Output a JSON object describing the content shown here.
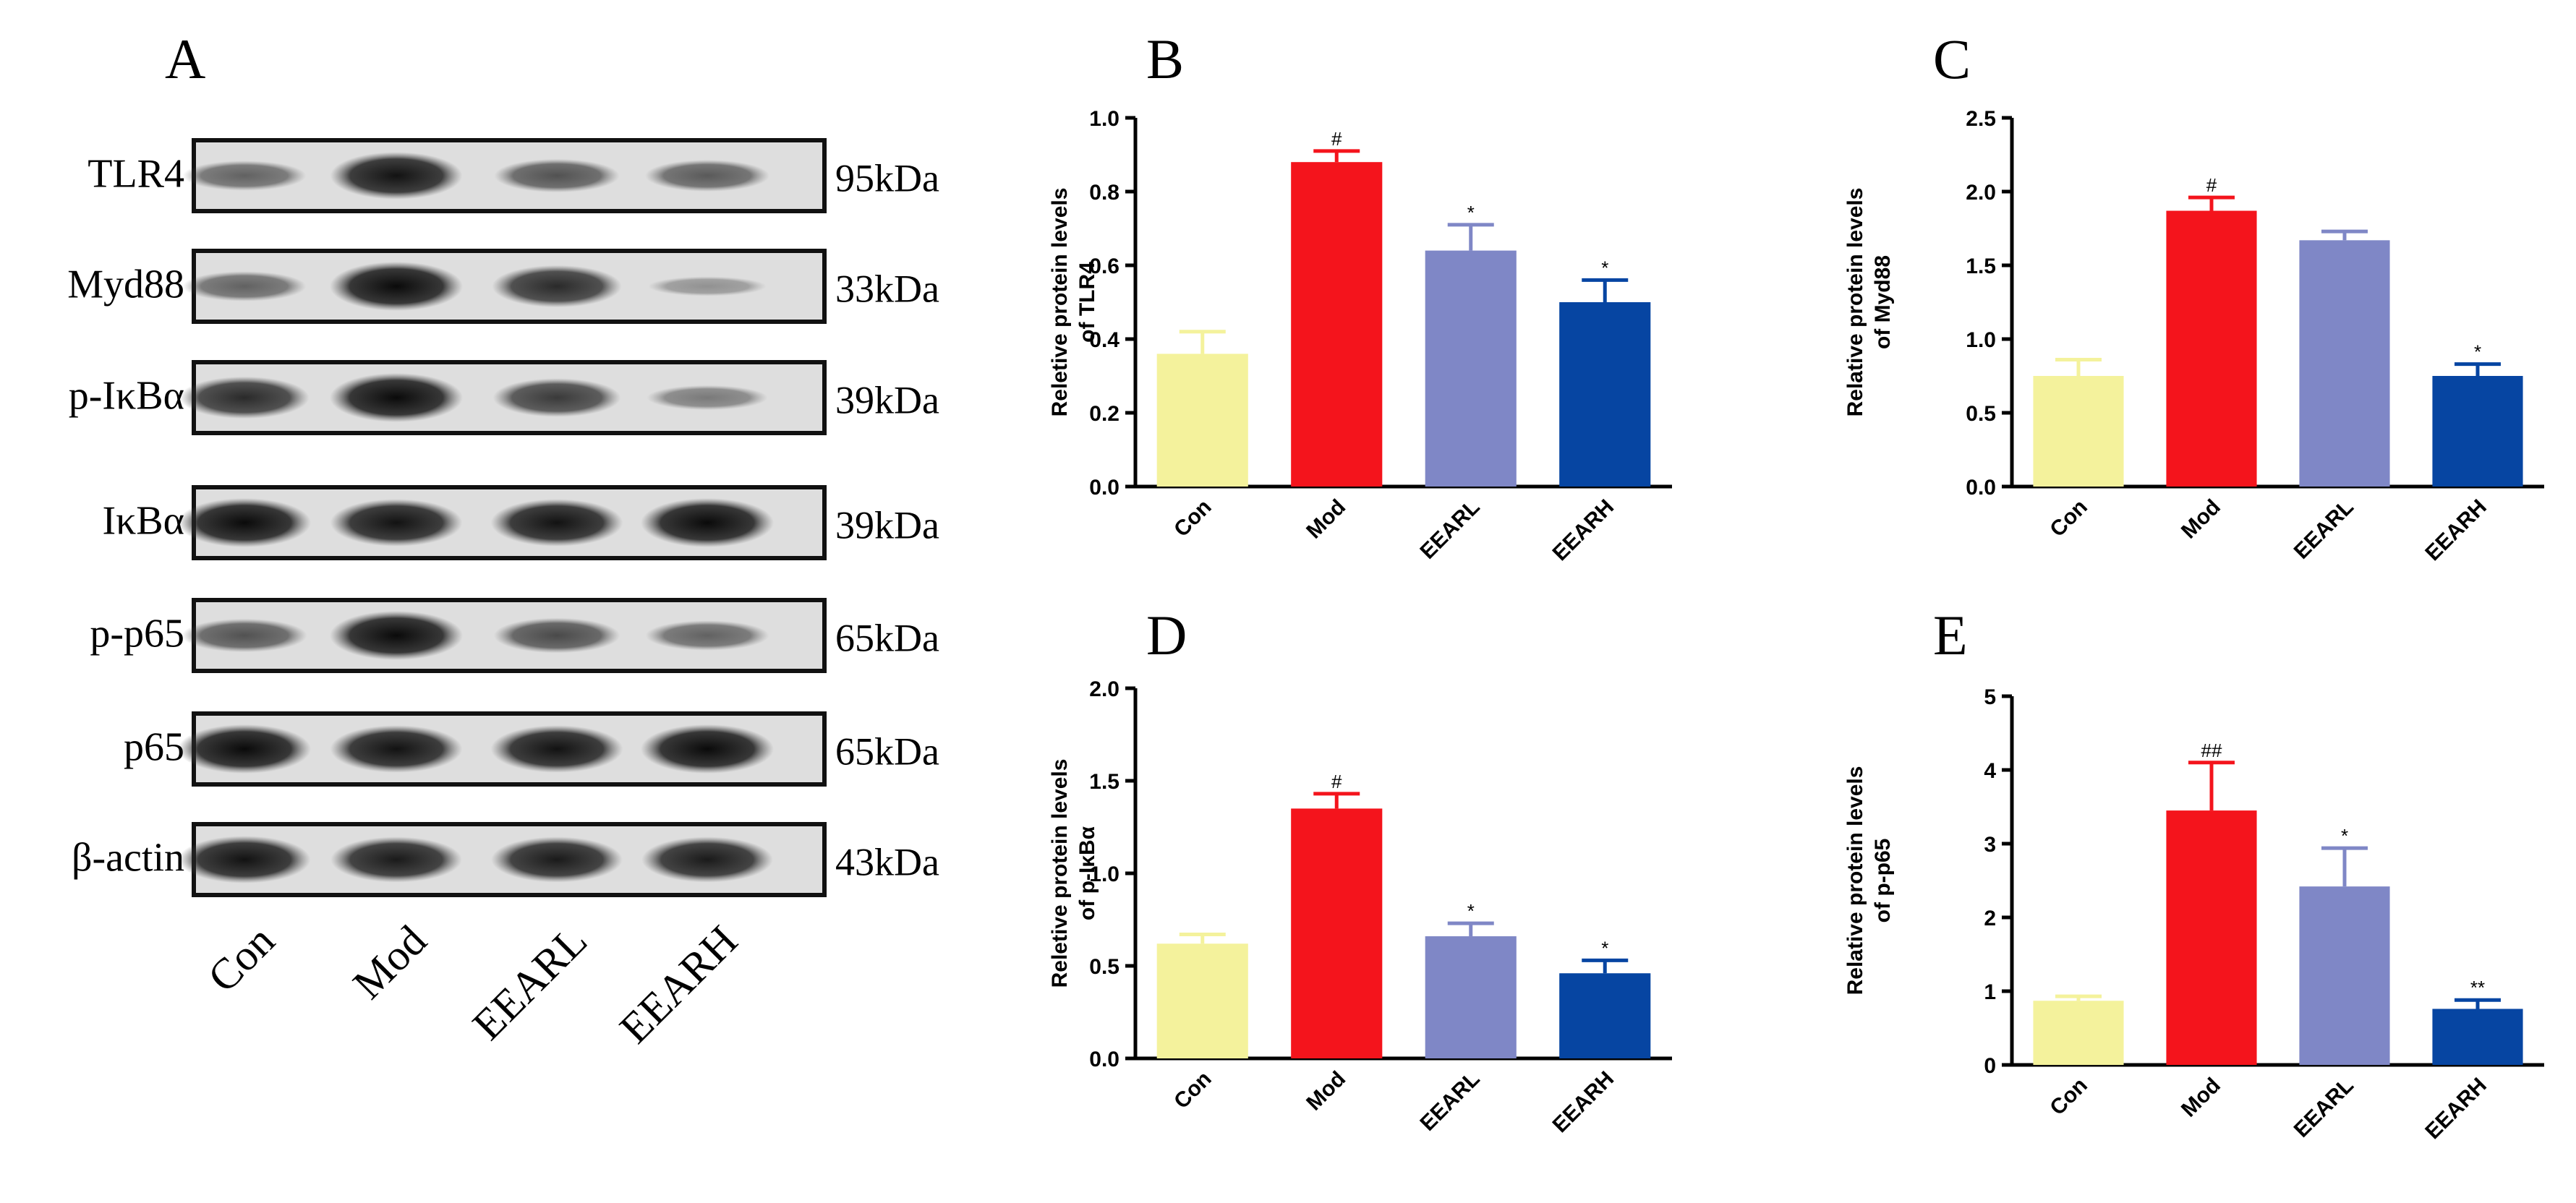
{
  "panel_a": {
    "label": "A",
    "lanes": [
      "Con",
      "Mod",
      "EEARL",
      "EEARH"
    ],
    "blots": [
      {
        "protein": "TLR4",
        "size": "95kDa",
        "bands": [
          0.45,
          0.95,
          0.55,
          0.5
        ]
      },
      {
        "protein": "Myd88",
        "size": "33kDa",
        "bands": [
          0.45,
          1.0,
          0.8,
          0.15
        ]
      },
      {
        "protein": "p-IκBα",
        "size": "39kDa",
        "bands": [
          0.8,
          1.0,
          0.7,
          0.3
        ]
      },
      {
        "protein": "IκBα",
        "size": "39kDa",
        "bands": [
          1.0,
          0.95,
          0.95,
          1.0
        ]
      },
      {
        "protein": "p-p65",
        "size": "65kDa",
        "bands": [
          0.55,
          1.0,
          0.6,
          0.45
        ]
      },
      {
        "protein": "p65",
        "size": "65kDa",
        "bands": [
          1.0,
          0.95,
          0.95,
          1.0
        ]
      },
      {
        "protein": "β-actin",
        "size": "43kDa",
        "bands": [
          0.95,
          0.9,
          0.9,
          0.9
        ]
      }
    ]
  },
  "colors": {
    "Con": "#f4f29c",
    "Mod": "#f4141c",
    "EEARL": "#7f87c6",
    "EEARH": "#0645a2",
    "axis": "#000000"
  },
  "chart_data": [
    {
      "panel": "B",
      "type": "bar",
      "categories": [
        "Con",
        "Mod",
        "EEARL",
        "EEARH"
      ],
      "values": [
        0.36,
        0.88,
        0.64,
        0.5
      ],
      "errors": [
        0.06,
        0.03,
        0.07,
        0.06
      ],
      "annotations": [
        "",
        "#",
        "*",
        "*"
      ],
      "ylabel": [
        "Reletive protein levels",
        "of TLR4"
      ],
      "ylim": [
        0,
        1.0
      ],
      "yticks": [
        0.0,
        0.2,
        0.4,
        0.6,
        0.8,
        1.0
      ],
      "yticklabels": [
        "0.0",
        "0.2",
        "0.4",
        "0.6",
        "0.8",
        "1.0"
      ]
    },
    {
      "panel": "C",
      "type": "bar",
      "categories": [
        "Con",
        "Mod",
        "EEARL",
        "EEARH"
      ],
      "values": [
        0.75,
        1.87,
        1.67,
        0.75
      ],
      "errors": [
        0.11,
        0.09,
        0.06,
        0.08
      ],
      "annotations": [
        "",
        "#",
        "",
        "*"
      ],
      "ylabel": [
        "Relative protein levels",
        "of Myd88"
      ],
      "ylim": [
        0,
        2.5
      ],
      "yticks": [
        0.0,
        0.5,
        1.0,
        1.5,
        2.0,
        2.5
      ],
      "yticklabels": [
        "0.0",
        "0.5",
        "1.0",
        "1.5",
        "2.0",
        "2.5"
      ]
    },
    {
      "panel": "D",
      "type": "bar",
      "categories": [
        "Con",
        "Mod",
        "EEARL",
        "EEARH"
      ],
      "values": [
        0.62,
        1.35,
        0.66,
        0.46
      ],
      "errors": [
        0.05,
        0.08,
        0.07,
        0.07
      ],
      "annotations": [
        "",
        "#",
        "*",
        "*"
      ],
      "ylabel": [
        "Reletive protein levels",
        "of p-IκBα"
      ],
      "ylim": [
        0,
        2.0
      ],
      "yticks": [
        0.0,
        0.5,
        1.0,
        1.5,
        2.0
      ],
      "yticklabels": [
        "0.0",
        "0.5",
        "1.0",
        "1.5",
        "2.0"
      ]
    },
    {
      "panel": "E",
      "type": "bar",
      "categories": [
        "Con",
        "Mod",
        "EEARL",
        "EEARH"
      ],
      "values": [
        0.87,
        3.45,
        2.42,
        0.76
      ],
      "errors": [
        0.06,
        0.65,
        0.52,
        0.12
      ],
      "annotations": [
        "",
        "##",
        "*",
        "**"
      ],
      "ylabel": [
        "Relative protein levels",
        "of p-p65"
      ],
      "ylim": [
        0,
        5
      ],
      "yticks": [
        0,
        1,
        2,
        3,
        4,
        5
      ],
      "yticklabels": [
        "0",
        "1",
        "2",
        "3",
        "4",
        "5"
      ]
    }
  ]
}
